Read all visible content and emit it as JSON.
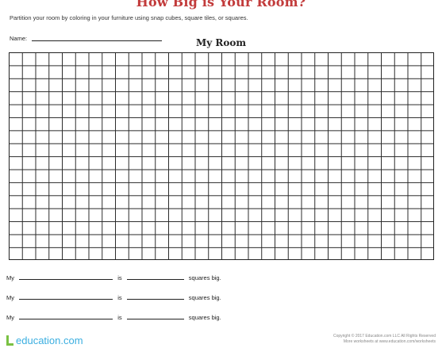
{
  "worksheet": {
    "title": "How Big is Your Room?",
    "instructions": "Partition your room by coloring in your furniture using snap cubes, square tiles, or squares.",
    "name_label": "Name:",
    "grid_title": "My Room"
  },
  "sentences": [
    {
      "start": "My",
      "middle": "is",
      "end": "squares big."
    },
    {
      "start": "My",
      "middle": "is",
      "end": "squares big."
    },
    {
      "start": "My",
      "middle": "is",
      "end": "squares big."
    }
  ],
  "footer": {
    "logo_text": "education.com",
    "copyright_line1": "Copyright © 2017 Education.com LLC All Rights Reserved",
    "copyright_line2": "More worksheets at www.education.com/worksheets"
  },
  "colors": {
    "title": "#c23b3b",
    "logo": "#3aaee0",
    "logo_mark": "#7ac143"
  }
}
